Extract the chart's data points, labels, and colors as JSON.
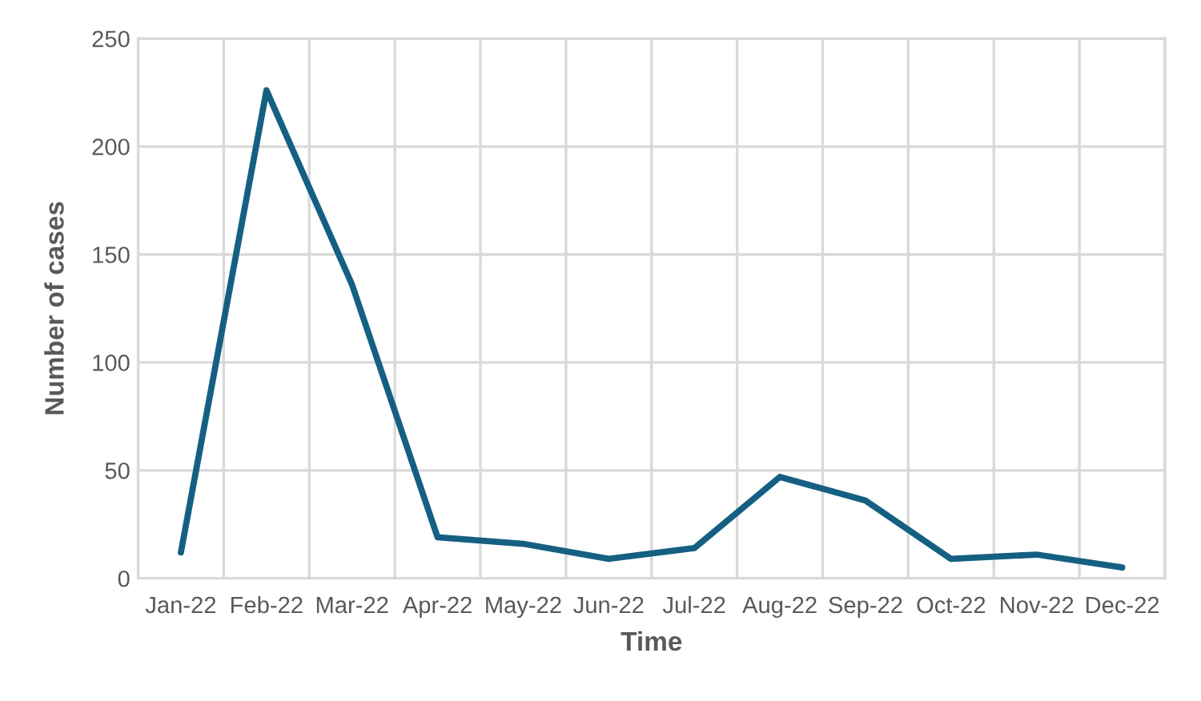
{
  "chart_data": {
    "type": "line",
    "xlabel": "Time",
    "ylabel": "Number of cases",
    "categories": [
      "Jan-22",
      "Feb-22",
      "Mar-22",
      "Apr-22",
      "May-22",
      "Jun-22",
      "Jul-22",
      "Aug-22",
      "Sep-22",
      "Oct-22",
      "Nov-22",
      "Dec-22"
    ],
    "series": [
      {
        "color": "#156082",
        "values": [
          12,
          226,
          136,
          19,
          16,
          9,
          14,
          47,
          36,
          9,
          11,
          5
        ]
      }
    ],
    "ylim": [
      0,
      250
    ],
    "yticks": [
      0,
      50,
      100,
      150,
      200,
      250
    ],
    "grid": true,
    "legend": false,
    "marker": "none",
    "line_style": "solid"
  }
}
